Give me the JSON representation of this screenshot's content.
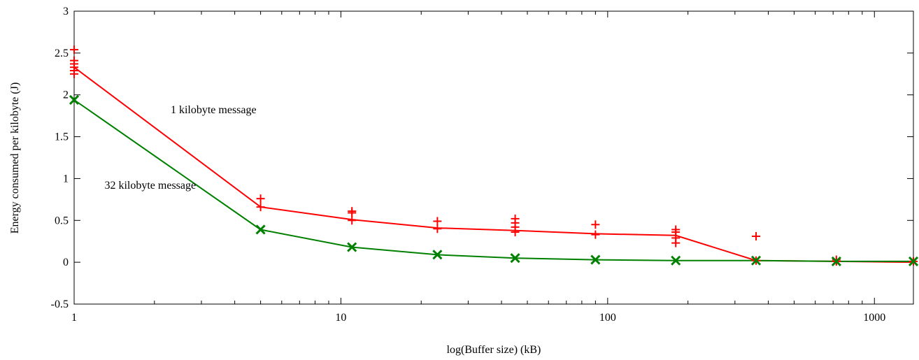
{
  "chart_data": {
    "type": "line",
    "xlabel": "log(Buffer size) (kB)",
    "ylabel": "Energy consumed per kilobyte (J)",
    "xscale": "log",
    "xlim": [
      1,
      1400
    ],
    "ylim": [
      -0.5,
      3
    ],
    "grid": false,
    "x_ticks": [
      1,
      10,
      100,
      1000
    ],
    "x_tick_labels": [
      "1",
      "10",
      "100",
      "1000"
    ],
    "y_ticks": [
      -0.5,
      0,
      0.5,
      1,
      1.5,
      2,
      2.5,
      3
    ],
    "y_tick_labels": [
      "-0.5",
      "0",
      "0.5",
      "1",
      "1.5",
      "2",
      "2.5",
      "3"
    ],
    "annotations": [
      {
        "text": "1 kilobyte message",
        "x": 2.3,
        "y": 1.78
      },
      {
        "text": "32 kilobyte message",
        "x": 1.3,
        "y": 0.88
      }
    ],
    "series": [
      {
        "color": "#ff0000",
        "marker": "plus",
        "x": [
          1,
          5,
          11,
          23,
          45,
          90,
          180,
          360,
          720,
          1400
        ],
        "y": [
          2.33,
          0.66,
          0.51,
          0.41,
          0.38,
          0.34,
          0.32,
          0.02,
          0.01,
          0.0
        ],
        "scatter": [
          {
            "x": 1,
            "y": 2.25
          },
          {
            "x": 1,
            "y": 2.29
          },
          {
            "x": 1,
            "y": 2.33
          },
          {
            "x": 1,
            "y": 2.37
          },
          {
            "x": 1,
            "y": 2.41
          },
          {
            "x": 1,
            "y": 2.54
          },
          {
            "x": 5,
            "y": 0.66
          },
          {
            "x": 5,
            "y": 0.76
          },
          {
            "x": 11,
            "y": 0.5
          },
          {
            "x": 11,
            "y": 0.59
          },
          {
            "x": 11,
            "y": 0.61
          },
          {
            "x": 23,
            "y": 0.4
          },
          {
            "x": 23,
            "y": 0.49
          },
          {
            "x": 45,
            "y": 0.36
          },
          {
            "x": 45,
            "y": 0.42
          },
          {
            "x": 45,
            "y": 0.47
          },
          {
            "x": 45,
            "y": 0.52
          },
          {
            "x": 90,
            "y": 0.33
          },
          {
            "x": 90,
            "y": 0.45
          },
          {
            "x": 180,
            "y": 0.23
          },
          {
            "x": 180,
            "y": 0.29
          },
          {
            "x": 180,
            "y": 0.36
          },
          {
            "x": 180,
            "y": 0.39
          },
          {
            "x": 360,
            "y": 0.31
          },
          {
            "x": 360,
            "y": 0.02
          },
          {
            "x": 720,
            "y": 0.03
          },
          {
            "x": 720,
            "y": 0.01
          },
          {
            "x": 1400,
            "y": 0.01
          }
        ]
      },
      {
        "color": "#008000",
        "marker": "cross",
        "x": [
          1,
          5,
          11,
          23,
          45,
          90,
          180,
          360,
          720,
          1400
        ],
        "y": [
          1.94,
          0.39,
          0.18,
          0.09,
          0.05,
          0.03,
          0.02,
          0.02,
          0.01,
          0.01
        ],
        "scatter": [
          {
            "x": 1,
            "y": 1.94
          },
          {
            "x": 5,
            "y": 0.39
          },
          {
            "x": 11,
            "y": 0.18
          },
          {
            "x": 23,
            "y": 0.09
          },
          {
            "x": 45,
            "y": 0.05
          },
          {
            "x": 90,
            "y": 0.03
          },
          {
            "x": 180,
            "y": 0.02
          },
          {
            "x": 360,
            "y": 0.02
          },
          {
            "x": 720,
            "y": 0.01
          },
          {
            "x": 1400,
            "y": 0.01
          }
        ]
      }
    ]
  }
}
